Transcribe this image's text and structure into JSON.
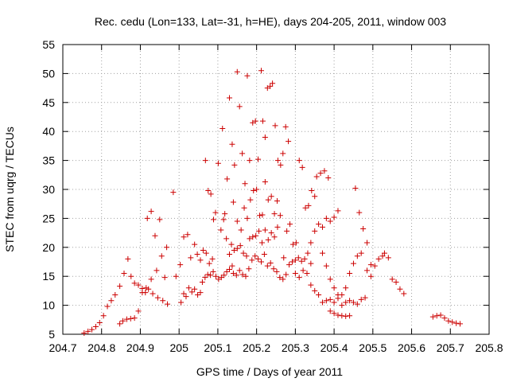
{
  "chart_data": {
    "type": "scatter",
    "title": "Rec. cedu (Lon=133, Lat=-31, h=HE), days 204-205, 2011, window 003",
    "xlabel": "GPS time / Days of year 2011",
    "ylabel": "STEC from uqrg / TECUs",
    "xlim": [
      204.7,
      205.8
    ],
    "ylim": [
      5,
      55
    ],
    "xticks": [
      204.7,
      204.8,
      204.9,
      205.0,
      205.1,
      205.2,
      205.3,
      205.4,
      205.5,
      205.6,
      205.7,
      205.8
    ],
    "xtick_labels": [
      "204.7",
      "204.8",
      "204.9",
      "205",
      "205.1",
      "205.2",
      "205.3",
      "205.4",
      "205.5",
      "205.6",
      "205.7",
      "205.8"
    ],
    "yticks": [
      5,
      10,
      15,
      20,
      25,
      30,
      35,
      40,
      45,
      50,
      55
    ],
    "ytick_labels": [
      "5",
      "10",
      "15",
      "20",
      "25",
      "30",
      "35",
      "40",
      "45",
      "50",
      "55"
    ],
    "grid": true,
    "marker_color": "#cc0000",
    "marker": "plus",
    "points": [
      [
        204.755,
        5.2
      ],
      [
        204.765,
        5.5
      ],
      [
        204.775,
        5.8
      ],
      [
        204.785,
        6.3
      ],
      [
        204.795,
        7.0
      ],
      [
        204.805,
        8.2
      ],
      [
        204.815,
        9.8
      ],
      [
        204.825,
        10.8
      ],
      [
        204.835,
        11.8
      ],
      [
        204.847,
        13.3
      ],
      [
        204.858,
        15.5
      ],
      [
        204.868,
        18.0
      ],
      [
        204.876,
        15.0
      ],
      [
        204.885,
        13.8
      ],
      [
        204.895,
        13.5
      ],
      [
        204.905,
        12.9
      ],
      [
        204.913,
        12.2
      ],
      [
        204.921,
        12.8
      ],
      [
        204.932,
        12.0
      ],
      [
        204.945,
        11.3
      ],
      [
        204.958,
        10.8
      ],
      [
        204.97,
        10.2
      ],
      [
        204.847,
        6.8
      ],
      [
        204.855,
        7.3
      ],
      [
        204.865,
        7.6
      ],
      [
        204.875,
        7.7
      ],
      [
        204.885,
        7.8
      ],
      [
        204.895,
        9.0
      ],
      [
        204.905,
        12.2
      ],
      [
        204.915,
        13.0
      ],
      [
        204.928,
        14.5
      ],
      [
        204.942,
        16.0
      ],
      [
        204.955,
        18.5
      ],
      [
        204.968,
        20.0
      ],
      [
        204.918,
        25.0
      ],
      [
        204.928,
        26.2
      ],
      [
        204.938,
        22.0
      ],
      [
        204.95,
        24.8
      ],
      [
        204.963,
        14.8
      ],
      [
        204.985,
        29.5
      ],
      [
        204.992,
        15.0
      ],
      [
        205.005,
        10.5
      ],
      [
        205.012,
        12.0
      ],
      [
        205.018,
        11.5
      ],
      [
        205.025,
        13.0
      ],
      [
        205.033,
        12.3
      ],
      [
        205.04,
        12.8
      ],
      [
        205.048,
        11.8
      ],
      [
        205.055,
        12.2
      ],
      [
        205.06,
        14.0
      ],
      [
        205.067,
        14.8
      ],
      [
        205.074,
        15.3
      ],
      [
        205.081,
        15.2
      ],
      [
        205.088,
        15.8
      ],
      [
        205.095,
        15.0
      ],
      [
        205.102,
        14.5
      ],
      [
        205.109,
        14.8
      ],
      [
        205.116,
        15.2
      ],
      [
        205.123,
        15.8
      ],
      [
        205.13,
        16.2
      ],
      [
        205.137,
        16.8
      ],
      [
        205.003,
        17.0
      ],
      [
        205.012,
        21.8
      ],
      [
        205.022,
        22.2
      ],
      [
        205.03,
        18.2
      ],
      [
        205.04,
        20.5
      ],
      [
        205.047,
        18.8
      ],
      [
        205.055,
        17.8
      ],
      [
        205.062,
        19.5
      ],
      [
        205.07,
        19.0
      ],
      [
        205.078,
        17.2
      ],
      [
        205.086,
        18.0
      ],
      [
        205.068,
        35.0
      ],
      [
        205.075,
        29.8
      ],
      [
        205.082,
        29.2
      ],
      [
        205.089,
        24.8
      ],
      [
        205.094,
        26.0
      ],
      [
        205.101,
        34.5
      ],
      [
        205.108,
        23.0
      ],
      [
        205.115,
        24.8
      ],
      [
        205.122,
        21.5
      ],
      [
        205.13,
        18.8
      ],
      [
        205.112,
        40.5
      ],
      [
        205.118,
        25.8
      ],
      [
        205.124,
        31.8
      ],
      [
        205.13,
        45.8
      ],
      [
        205.137,
        37.8
      ],
      [
        205.143,
        34.2
      ],
      [
        205.15,
        50.3
      ],
      [
        205.156,
        44.3
      ],
      [
        205.163,
        36.2
      ],
      [
        205.17,
        31.0
      ],
      [
        205.176,
        49.6
      ],
      [
        205.182,
        35.0
      ],
      [
        205.19,
        41.5
      ],
      [
        205.197,
        41.8
      ],
      [
        205.204,
        35.2
      ],
      [
        205.212,
        50.5
      ],
      [
        205.216,
        41.8
      ],
      [
        205.222,
        39.0
      ],
      [
        205.228,
        47.5
      ],
      [
        205.235,
        47.8
      ],
      [
        205.241,
        48.3
      ],
      [
        205.248,
        41.0
      ],
      [
        205.255,
        35.0
      ],
      [
        205.262,
        34.2
      ],
      [
        205.268,
        36.2
      ],
      [
        205.275,
        40.8
      ],
      [
        205.282,
        38.3
      ],
      [
        205.14,
        27.8
      ],
      [
        205.15,
        24.5
      ],
      [
        205.16,
        23.0
      ],
      [
        205.168,
        26.8
      ],
      [
        205.176,
        25.0
      ],
      [
        205.184,
        28.2
      ],
      [
        205.192,
        29.8
      ],
      [
        205.2,
        30.0
      ],
      [
        205.208,
        25.5
      ],
      [
        205.215,
        25.6
      ],
      [
        205.222,
        31.3
      ],
      [
        205.23,
        28.2
      ],
      [
        205.238,
        28.8
      ],
      [
        205.246,
        25.8
      ],
      [
        205.253,
        28.0
      ],
      [
        205.261,
        25.5
      ],
      [
        205.135,
        20.5
      ],
      [
        205.142,
        19.5
      ],
      [
        205.15,
        19.8
      ],
      [
        205.158,
        20.3
      ],
      [
        205.166,
        19.0
      ],
      [
        205.174,
        18.5
      ],
      [
        205.182,
        21.5
      ],
      [
        205.19,
        21.8
      ],
      [
        205.198,
        22.0
      ],
      [
        205.206,
        22.8
      ],
      [
        205.214,
        20.8
      ],
      [
        205.222,
        23.0
      ],
      [
        205.23,
        21.3
      ],
      [
        205.238,
        22.5
      ],
      [
        205.246,
        21.8
      ],
      [
        205.254,
        23.5
      ],
      [
        205.14,
        15.5
      ],
      [
        205.148,
        15.2
      ],
      [
        205.156,
        16.0
      ],
      [
        205.164,
        15.3
      ],
      [
        205.172,
        15.0
      ],
      [
        205.18,
        16.3
      ],
      [
        205.188,
        17.8
      ],
      [
        205.196,
        18.5
      ],
      [
        205.204,
        18.0
      ],
      [
        205.212,
        17.5
      ],
      [
        205.22,
        18.8
      ],
      [
        205.228,
        16.8
      ],
      [
        205.236,
        17.3
      ],
      [
        205.244,
        16.3
      ],
      [
        205.252,
        15.8
      ],
      [
        205.26,
        14.8
      ],
      [
        205.268,
        14.5
      ],
      [
        205.276,
        15.3
      ],
      [
        205.284,
        17.0
      ],
      [
        205.292,
        17.5
      ],
      [
        205.3,
        17.8
      ],
      [
        205.308,
        18.2
      ],
      [
        205.316,
        17.6
      ],
      [
        205.324,
        18.0
      ],
      [
        205.332,
        19.0
      ],
      [
        205.34,
        17.2
      ],
      [
        205.27,
        18.2
      ],
      [
        205.278,
        22.8
      ],
      [
        205.286,
        24.0
      ],
      [
        205.294,
        20.5
      ],
      [
        205.302,
        20.8
      ],
      [
        205.31,
        35.0
      ],
      [
        205.318,
        33.8
      ],
      [
        205.326,
        26.8
      ],
      [
        205.334,
        27.2
      ],
      [
        205.342,
        29.8
      ],
      [
        205.35,
        28.8
      ],
      [
        205.3,
        15.5
      ],
      [
        205.31,
        14.8
      ],
      [
        205.32,
        16.0
      ],
      [
        205.33,
        15.5
      ],
      [
        205.34,
        13.5
      ],
      [
        205.35,
        12.5
      ],
      [
        205.36,
        11.8
      ],
      [
        205.37,
        10.5
      ],
      [
        205.38,
        10.8
      ],
      [
        205.39,
        11.0
      ],
      [
        205.4,
        10.5
      ],
      [
        205.41,
        11.2
      ],
      [
        205.42,
        11.8
      ],
      [
        205.43,
        10.5
      ],
      [
        205.44,
        10.8
      ],
      [
        205.45,
        10.5
      ],
      [
        205.46,
        10.2
      ],
      [
        205.47,
        11.0
      ],
      [
        205.48,
        11.3
      ],
      [
        205.34,
        20.8
      ],
      [
        205.35,
        22.8
      ],
      [
        205.36,
        24.0
      ],
      [
        205.37,
        23.5
      ],
      [
        205.38,
        25.0
      ],
      [
        205.39,
        24.5
      ],
      [
        205.4,
        25.2
      ],
      [
        205.41,
        26.3
      ],
      [
        205.355,
        32.2
      ],
      [
        205.365,
        32.8
      ],
      [
        205.375,
        33.2
      ],
      [
        205.385,
        32.0
      ],
      [
        205.37,
        19.0
      ],
      [
        205.38,
        16.8
      ],
      [
        205.39,
        14.5
      ],
      [
        205.4,
        13.0
      ],
      [
        205.41,
        11.8
      ],
      [
        205.42,
        10.0
      ],
      [
        205.43,
        13.0
      ],
      [
        205.44,
        15.5
      ],
      [
        205.45,
        17.2
      ],
      [
        205.46,
        18.5
      ],
      [
        205.47,
        19.0
      ],
      [
        205.455,
        30.2
      ],
      [
        205.465,
        26.0
      ],
      [
        205.475,
        23.2
      ],
      [
        205.485,
        20.8
      ],
      [
        205.495,
        17.0
      ],
      [
        205.39,
        9.0
      ],
      [
        205.4,
        8.6
      ],
      [
        205.41,
        8.3
      ],
      [
        205.42,
        8.2
      ],
      [
        205.43,
        8.1
      ],
      [
        205.44,
        8.2
      ],
      [
        205.485,
        16.0
      ],
      [
        205.495,
        15.0
      ],
      [
        205.505,
        16.8
      ],
      [
        205.515,
        18.0
      ],
      [
        205.525,
        18.5
      ],
      [
        205.53,
        19.0
      ],
      [
        205.54,
        18.2
      ],
      [
        205.55,
        14.5
      ],
      [
        205.56,
        14.0
      ],
      [
        205.57,
        12.8
      ],
      [
        205.58,
        12.0
      ],
      [
        205.655,
        8.0
      ],
      [
        205.665,
        8.2
      ],
      [
        205.675,
        8.3
      ],
      [
        205.685,
        7.8
      ],
      [
        205.695,
        7.3
      ],
      [
        205.705,
        7.1
      ],
      [
        205.715,
        6.9
      ],
      [
        205.725,
        6.8
      ]
    ]
  }
}
